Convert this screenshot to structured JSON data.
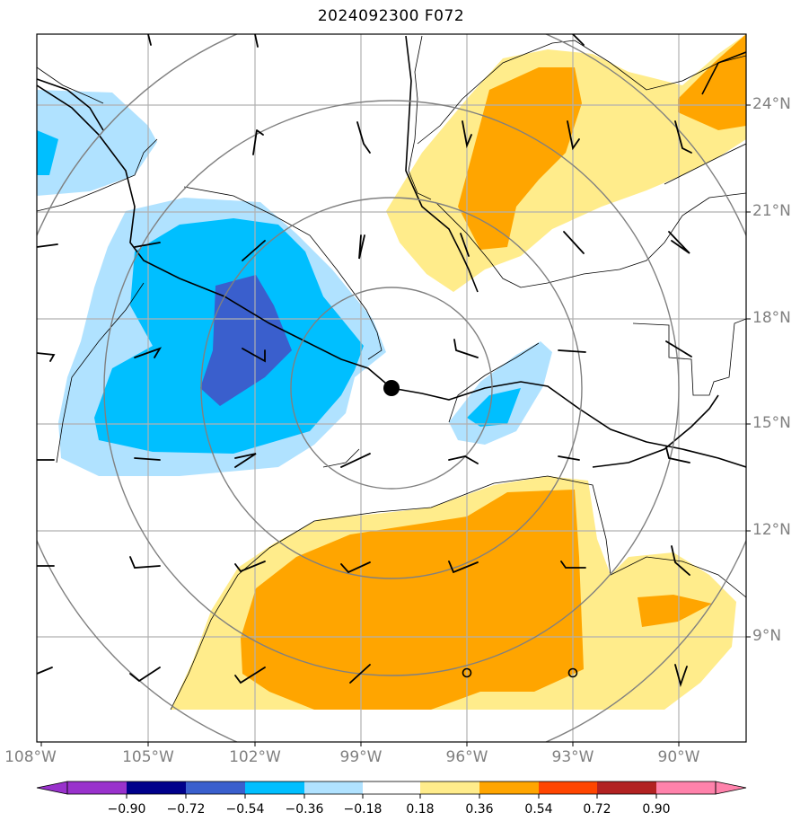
{
  "title": "2024092300 F072",
  "lon_labels": [
    "108°W",
    "105°W",
    "102°W",
    "99°W",
    "96°W",
    "93°W",
    "90°W"
  ],
  "lat_labels": [
    "24°N",
    "21°N",
    "18°N",
    "15°N",
    "12°N",
    "9°N"
  ],
  "colorbar": {
    "ticks": [
      "−0.90",
      "−0.72",
      "−0.54",
      "−0.36",
      "−0.18",
      "0.18",
      "0.36",
      "0.54",
      "0.72",
      "0.90"
    ],
    "colors": [
      "#9932cc",
      "#00008b",
      "#3a5fcd",
      "#00bfff",
      "#b0e2ff",
      "#ffffff",
      "#ffec8b",
      "#ffa500",
      "#ff4500",
      "#b22222",
      "#ff82ab"
    ]
  },
  "colors": {
    "neg_light": "#b0e2ff",
    "neg_mid": "#00bfff",
    "neg_dark": "#3a5fcd",
    "pos_light": "#ffec8b",
    "pos_mid": "#ffa500",
    "grid": "#b0b0b0",
    "range_rings": "#808080"
  },
  "storm_center": {
    "lon": -98.0,
    "lat": 16.0
  }
}
